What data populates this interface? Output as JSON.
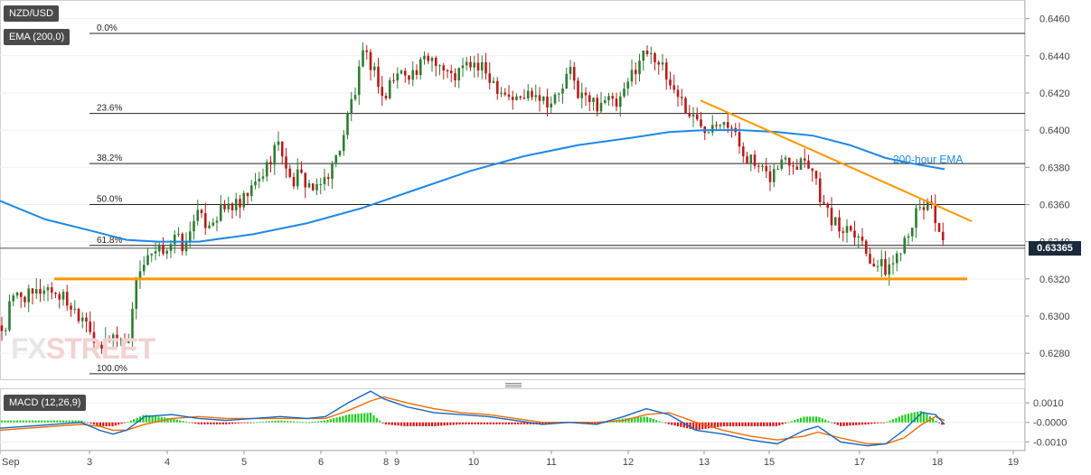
{
  "instrument": "NZD/USD",
  "indicator_labels": {
    "ema": "EMA (200,0)",
    "macd": "MACD (12,26,9)"
  },
  "watermark": {
    "part1": "FX",
    "part2": "STREET"
  },
  "current_price": "0.63365",
  "colors": {
    "up_candle": "#2e7d32",
    "down_candle": "#b71c1c",
    "ema": "#1e88e5",
    "trendline": "#ff9800",
    "macd_line": "#1565c0",
    "signal_line": "#ef6c00",
    "hist_pos": "#22cc22",
    "hist_neg": "#dd1111",
    "price_tag_bg": "#1b2a3a"
  },
  "chart_data": [
    {
      "type": "candlestick",
      "title": "NZD/USD",
      "x_tick_labels": [
        "Sep",
        "3",
        "4",
        "5",
        "6",
        "8",
        "9",
        "10",
        "11",
        "12",
        "13",
        "15",
        "17",
        "18",
        "19"
      ],
      "y_tick_labels": [
        "0.6460",
        "0.6440",
        "0.6420",
        "0.6400",
        "0.6380",
        "0.6360",
        "0.6340",
        "0.6320",
        "0.6300",
        "0.6280"
      ],
      "ylim": [
        0.6266,
        0.647
      ],
      "close_path": [
        [
          0,
          0.6295
        ],
        [
          5,
          0.629
        ],
        [
          10,
          0.6305
        ],
        [
          20,
          0.6312
        ],
        [
          35,
          0.631
        ],
        [
          50,
          0.6316
        ],
        [
          60,
          0.6313
        ],
        [
          70,
          0.631
        ],
        [
          85,
          0.6302
        ],
        [
          95,
          0.63
        ],
        [
          100,
          0.6294
        ],
        [
          105,
          0.6285
        ],
        [
          110,
          0.6278
        ],
        [
          115,
          0.6286
        ],
        [
          125,
          0.629
        ],
        [
          135,
          0.6286
        ],
        [
          145,
          0.6292
        ],
        [
          150,
          0.6322
        ],
        [
          160,
          0.6328
        ],
        [
          175,
          0.6334
        ],
        [
          185,
          0.6338
        ],
        [
          195,
          0.6342
        ],
        [
          205,
          0.6336
        ],
        [
          210,
          0.6345
        ],
        [
          215,
          0.6356
        ],
        [
          225,
          0.635
        ],
        [
          235,
          0.6352
        ],
        [
          245,
          0.6356
        ],
        [
          255,
          0.636
        ],
        [
          265,
          0.6358
        ],
        [
          275,
          0.6366
        ],
        [
          285,
          0.6372
        ],
        [
          295,
          0.638
        ],
        [
          305,
          0.6393
        ],
        [
          315,
          0.6386
        ],
        [
          320,
          0.6372
        ],
        [
          330,
          0.6375
        ],
        [
          340,
          0.6372
        ],
        [
          350,
          0.6366
        ],
        [
          360,
          0.6375
        ],
        [
          370,
          0.6382
        ],
        [
          380,
          0.6398
        ],
        [
          390,
          0.6418
        ],
        [
          395,
          0.6422
        ],
        [
          400,
          0.644
        ],
        [
          410,
          0.6436
        ],
        [
          420,
          0.6425
        ],
        [
          425,
          0.6413
        ],
        [
          430,
          0.6425
        ],
        [
          440,
          0.643
        ],
        [
          450,
          0.6432
        ],
        [
          460,
          0.643
        ],
        [
          470,
          0.6438
        ],
        [
          480,
          0.644
        ],
        [
          490,
          0.6433
        ],
        [
          500,
          0.6428
        ],
        [
          510,
          0.6432
        ],
        [
          520,
          0.6436
        ],
        [
          530,
          0.6433
        ],
        [
          540,
          0.643
        ],
        [
          550,
          0.6424
        ],
        [
          560,
          0.642
        ],
        [
          570,
          0.6416
        ],
        [
          580,
          0.6418
        ],
        [
          590,
          0.6422
        ],
        [
          600,
          0.6418
        ],
        [
          610,
          0.6415
        ],
        [
          620,
          0.642
        ],
        [
          630,
          0.6432
        ],
        [
          640,
          0.642
        ],
        [
          650,
          0.6416
        ],
        [
          660,
          0.6414
        ],
        [
          670,
          0.6418
        ],
        [
          680,
          0.6412
        ],
        [
          690,
          0.6418
        ],
        [
          700,
          0.6432
        ],
        [
          710,
          0.644
        ],
        [
          720,
          0.6444
        ],
        [
          730,
          0.6435
        ],
        [
          740,
          0.6425
        ],
        [
          750,
          0.642
        ],
        [
          760,
          0.641
        ],
        [
          770,
          0.6405
        ],
        [
          780,
          0.6402
        ],
        [
          790,
          0.6405
        ],
        [
          800,
          0.6408
        ],
        [
          810,
          0.64
        ],
        [
          820,
          0.639
        ],
        [
          830,
          0.6384
        ],
        [
          840,
          0.6378
        ],
        [
          850,
          0.6374
        ],
        [
          860,
          0.638
        ],
        [
          870,
          0.6386
        ],
        [
          880,
          0.6382
        ],
        [
          890,
          0.6386
        ],
        [
          900,
          0.6378
        ],
        [
          905,
          0.637
        ],
        [
          910,
          0.636
        ],
        [
          920,
          0.6352
        ],
        [
          930,
          0.6346
        ],
        [
          940,
          0.635
        ],
        [
          950,
          0.6344
        ],
        [
          960,
          0.6333
        ],
        [
          970,
          0.6328
        ],
        [
          980,
          0.6325
        ],
        [
          990,
          0.633
        ],
        [
          1000,
          0.6342
        ],
        [
          1010,
          0.6352
        ],
        [
          1020,
          0.6358
        ],
        [
          1030,
          0.6362
        ],
        [
          1035,
          0.6352
        ],
        [
          1040,
          0.6344
        ],
        [
          1044,
          0.6336
        ]
      ],
      "ema_200": [
        [
          0,
          0.6362
        ],
        [
          50,
          0.6352
        ],
        [
          100,
          0.6346
        ],
        [
          140,
          0.6341
        ],
        [
          175,
          0.634
        ],
        [
          220,
          0.634
        ],
        [
          280,
          0.6344
        ],
        [
          340,
          0.635
        ],
        [
          400,
          0.6358
        ],
        [
          460,
          0.6368
        ],
        [
          520,
          0.6378
        ],
        [
          580,
          0.6386
        ],
        [
          640,
          0.6392
        ],
        [
          700,
          0.6396
        ],
        [
          740,
          0.6399
        ],
        [
          780,
          0.64
        ],
        [
          820,
          0.64
        ],
        [
          860,
          0.6399
        ],
        [
          900,
          0.6397
        ],
        [
          940,
          0.6392
        ],
        [
          980,
          0.6385
        ],
        [
          1010,
          0.6382
        ],
        [
          1045,
          0.6379
        ]
      ],
      "ema_label": "200-hour EMA",
      "fibonacci_levels": [
        {
          "label": "0.0%",
          "value": 0.6452
        },
        {
          "label": "23.6%",
          "value": 0.6409
        },
        {
          "label": "38.2%",
          "value": 0.6382
        },
        {
          "label": "50.0%",
          "value": 0.636
        },
        {
          "label": "61.8%",
          "value": 0.6338
        },
        {
          "label": "100.0%",
          "value": 0.6269
        }
      ],
      "current_price_value": 0.63365,
      "trendlines": [
        {
          "type": "resistance",
          "from": [
            775,
            0.6416
          ],
          "to": [
            1075,
            0.6351
          ]
        },
        {
          "type": "support",
          "from": [
            60,
            0.632
          ],
          "to": [
            1070,
            0.632
          ]
        }
      ]
    },
    {
      "type": "line",
      "title": "MACD (12,26,9)",
      "y_tick_labels": [
        "0.0010",
        "-0.0000",
        "-0.0010"
      ],
      "ylim": [
        -0.0014,
        0.0017
      ],
      "series": [
        {
          "values": [
            [
              0,
              -0.0003
            ],
            [
              30,
              -0.0002
            ],
            [
              60,
              -0.0001
            ],
            [
              90,
              0.0
            ],
            [
              110,
              -0.0004
            ],
            [
              125,
              -0.0006
            ],
            [
              140,
              -0.0004
            ],
            [
              160,
              0.0003
            ],
            [
              190,
              0.0004
            ],
            [
              220,
              0.0002
            ],
            [
              250,
              0.0001
            ],
            [
              280,
              0.0002
            ],
            [
              310,
              0.0003
            ],
            [
              340,
              0.0002
            ],
            [
              360,
              0.0003
            ],
            [
              385,
              0.001
            ],
            [
              410,
              0.0016
            ],
            [
              425,
              0.0012
            ],
            [
              450,
              0.0008
            ],
            [
              480,
              0.0005
            ],
            [
              510,
              0.0004
            ],
            [
              540,
              0.0003
            ],
            [
              570,
              0.0001
            ],
            [
              600,
              -0.0001
            ],
            [
              630,
              0.0
            ],
            [
              660,
              -0.0001
            ],
            [
              690,
              0.0003
            ],
            [
              715,
              0.0007
            ],
            [
              740,
              0.0004
            ],
            [
              770,
              -0.0004
            ],
            [
              800,
              -0.0006
            ],
            [
              830,
              -0.0009
            ],
            [
              860,
              -0.0011
            ],
            [
              890,
              -0.0004
            ],
            [
              905,
              -0.0002
            ],
            [
              930,
              -0.001
            ],
            [
              960,
              -0.0012
            ],
            [
              980,
              -0.0011
            ],
            [
              1000,
              -0.0004
            ],
            [
              1020,
              0.0005
            ],
            [
              1035,
              0.0004
            ],
            [
              1045,
              -0.0001
            ]
          ]
        },
        {
          "values": [
            [
              0,
              -0.0004
            ],
            [
              30,
              -0.0003
            ],
            [
              60,
              -0.0002
            ],
            [
              90,
              -0.0001
            ],
            [
              110,
              -0.0002
            ],
            [
              125,
              -0.0004
            ],
            [
              140,
              -0.0004
            ],
            [
              160,
              -0.0001
            ],
            [
              190,
              0.0002
            ],
            [
              220,
              0.0003
            ],
            [
              250,
              0.0002
            ],
            [
              280,
              0.0002
            ],
            [
              310,
              0.0002
            ],
            [
              340,
              0.0002
            ],
            [
              360,
              0.0002
            ],
            [
              385,
              0.0006
            ],
            [
              410,
              0.0011
            ],
            [
              425,
              0.0013
            ],
            [
              450,
              0.001
            ],
            [
              480,
              0.0007
            ],
            [
              510,
              0.0005
            ],
            [
              540,
              0.0004
            ],
            [
              570,
              0.0002
            ],
            [
              600,
              0.0
            ],
            [
              630,
              0.0
            ],
            [
              660,
              0.0
            ],
            [
              690,
              0.0001
            ],
            [
              715,
              0.0004
            ],
            [
              740,
              0.0005
            ],
            [
              770,
              0.0
            ],
            [
              800,
              -0.0004
            ],
            [
              830,
              -0.0007
            ],
            [
              860,
              -0.0009
            ],
            [
              890,
              -0.0007
            ],
            [
              905,
              -0.0005
            ],
            [
              930,
              -0.0008
            ],
            [
              960,
              -0.0011
            ],
            [
              980,
              -0.0011
            ],
            [
              1000,
              -0.0008
            ],
            [
              1020,
              -0.0001
            ],
            [
              1035,
              0.0003
            ],
            [
              1045,
              0.0001
            ]
          ]
        }
      ]
    }
  ]
}
